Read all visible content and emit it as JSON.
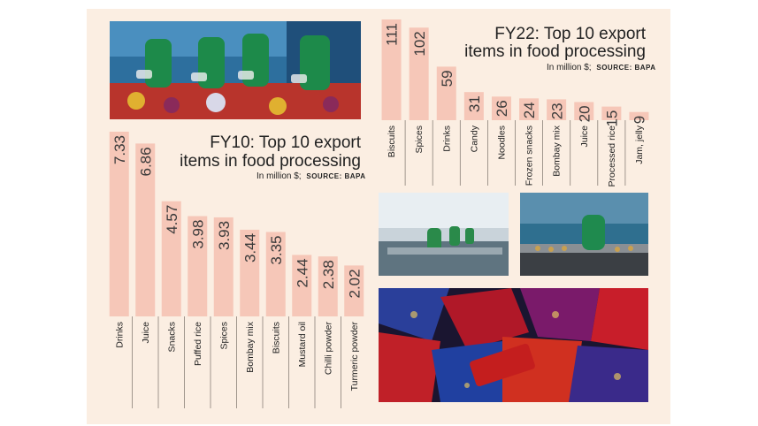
{
  "chart_data": [
    {
      "type": "bar",
      "title": "FY22: Top 10 export items in food processing",
      "title_lines": [
        "FY22: Top 10 export",
        "items in food processing"
      ],
      "unit_note": "In million $;",
      "source_note": "SOURCE: BAPA",
      "categories": [
        "Biscuits",
        "Spices",
        "Drinks",
        "Candy",
        "Noodles",
        "Frozen snacks",
        "Bombay mix",
        "Juice",
        "Processed rice",
        "Jam, jelly"
      ],
      "values": [
        111,
        102,
        59,
        31,
        26,
        24,
        23,
        20,
        15,
        9
      ],
      "value_labels": [
        "111",
        "102",
        "59",
        "31",
        "26",
        "24",
        "23",
        "20",
        "15",
        "9"
      ],
      "ylim": [
        0,
        111
      ],
      "grid": false,
      "legend": "none"
    },
    {
      "type": "bar",
      "title": "FY10: Top 10 export items in food processing",
      "title_lines": [
        "FY10: Top 10 export",
        "items in food processing"
      ],
      "unit_note": "In million $;",
      "source_note": "SOURCE: BAPA",
      "categories": [
        "Drinks",
        "Juice",
        "Snacks",
        "Puffed rice",
        "Spices",
        "Bombay mix",
        "Biscuits",
        "Mustard oil",
        "Chilli powder",
        "Turmeric powder"
      ],
      "values": [
        7.33,
        6.86,
        4.57,
        3.98,
        3.93,
        3.44,
        3.35,
        2.44,
        2.38,
        2.02
      ],
      "value_labels": [
        "7.33",
        "6.86",
        "4.57",
        "3.98",
        "3.93",
        "3.44",
        "3.35",
        "2.44",
        "2.38",
        "2.02"
      ],
      "ylim": [
        0,
        7.33
      ],
      "grid": false,
      "legend": "none"
    }
  ],
  "colors": {
    "background": "#fbeee2",
    "bar": "#f6c7b8",
    "text": "#222222"
  }
}
